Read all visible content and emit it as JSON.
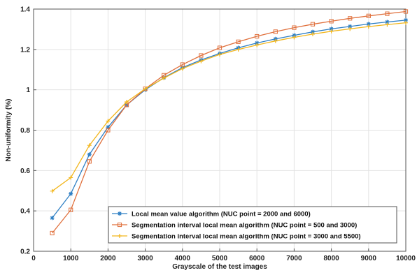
{
  "chart_data": {
    "type": "line",
    "xlabel": "Grayscale of the test images",
    "ylabel": "Non-uniformity (%)",
    "xlim": [
      0,
      10000
    ],
    "ylim": [
      0.2,
      1.4
    ],
    "x_ticks": [
      0,
      1000,
      2000,
      3000,
      4000,
      5000,
      6000,
      7000,
      8000,
      9000,
      10000
    ],
    "y_ticks": [
      0.2,
      0.4,
      0.6,
      0.8,
      1,
      1.2,
      1.4
    ],
    "grid": true,
    "legend_position": "bottom-right",
    "x": [
      500,
      1000,
      1500,
      2000,
      2500,
      3000,
      3500,
      4000,
      4500,
      5000,
      5500,
      6000,
      6500,
      7000,
      7500,
      8000,
      8500,
      9000,
      9500,
      10000
    ],
    "series": [
      {
        "name": "Local mean value algorithm (NUC point = 2000 and 6000)",
        "color": "#2e7fc4",
        "marker": "asterisk",
        "values": [
          0.365,
          0.485,
          0.68,
          0.815,
          0.925,
          1.0,
          1.06,
          1.11,
          1.148,
          1.18,
          1.208,
          1.232,
          1.252,
          1.27,
          1.287,
          1.302,
          1.314,
          1.326,
          1.336,
          1.345
        ]
      },
      {
        "name": "Segmentation interval local mean algorithm (NUC point = 500 and 3000)",
        "color": "#e0703c",
        "marker": "square",
        "values": [
          0.29,
          0.405,
          0.645,
          0.8,
          0.925,
          1.005,
          1.072,
          1.125,
          1.17,
          1.208,
          1.238,
          1.265,
          1.288,
          1.308,
          1.325,
          1.34,
          1.354,
          1.366,
          1.377,
          1.388
        ]
      },
      {
        "name": "Segmentation interval local mean algorithm (NUC point = 3000 and 5500)",
        "color": "#f2b61c",
        "marker": "plus",
        "values": [
          0.498,
          0.565,
          0.725,
          0.845,
          0.94,
          1.005,
          1.058,
          1.105,
          1.142,
          1.175,
          1.2,
          1.222,
          1.242,
          1.26,
          1.276,
          1.29,
          1.302,
          1.313,
          1.323,
          1.332
        ]
      }
    ]
  }
}
